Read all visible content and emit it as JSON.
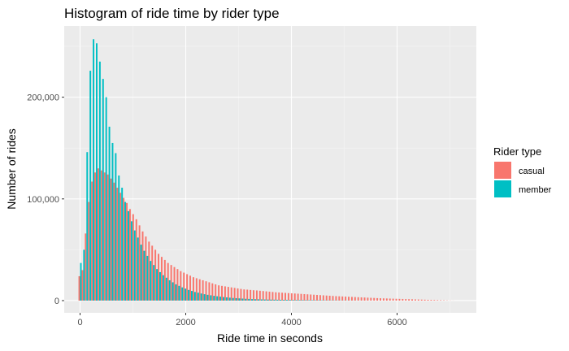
{
  "chart_data": {
    "type": "bar",
    "title": "Histogram of ride time by rider type",
    "xlabel": "Ride time in seconds",
    "ylabel": "Number of rides",
    "xlim": [
      -300,
      7500
    ],
    "ylim": [
      -12000,
      270000
    ],
    "x_ticks": [
      0,
      2000,
      4000,
      6000
    ],
    "x_tick_labels": [
      "0",
      "2000",
      "4000",
      "6000"
    ],
    "y_ticks": [
      0,
      100000,
      200000
    ],
    "y_tick_labels": [
      "0",
      "100,000",
      "200,000"
    ],
    "grid": true,
    "legend": {
      "title": "Rider type",
      "position": "right"
    },
    "bin_width": 60,
    "x": [
      0,
      60,
      120,
      180,
      240,
      300,
      360,
      420,
      480,
      540,
      600,
      660,
      720,
      780,
      840,
      900,
      960,
      1020,
      1080,
      1140,
      1200,
      1260,
      1320,
      1380,
      1440,
      1500,
      1560,
      1620,
      1680,
      1740,
      1800,
      1860,
      1920,
      1980,
      2040,
      2100,
      2160,
      2220,
      2280,
      2340,
      2400,
      2460,
      2520,
      2580,
      2640,
      2700,
      2760,
      2820,
      2880,
      2940,
      3000,
      3060,
      3120,
      3180,
      3240,
      3300,
      3360,
      3420,
      3480,
      3540,
      3600,
      3660,
      3720,
      3780,
      3840,
      3900,
      3960,
      4020,
      4080,
      4140,
      4200,
      4260,
      4320,
      4380,
      4440,
      4500,
      4560,
      4620,
      4680,
      4740,
      4800,
      4860,
      4920,
      4980,
      5040,
      5100,
      5160,
      5220,
      5280,
      5340,
      5400,
      5460,
      5520,
      5580,
      5640,
      5700,
      5760,
      5820,
      5880,
      5940,
      6000,
      6060,
      6120,
      6180,
      6240,
      6300,
      6360,
      6420,
      6480,
      6540,
      6600,
      6660,
      6720,
      6780,
      6840,
      6900,
      6960,
      7020,
      7080
    ],
    "series": [
      {
        "name": "casual",
        "color": "#F8766D",
        "values": [
          24000,
          30000,
          66000,
          97000,
          117000,
          126000,
          130000,
          128000,
          126000,
          124000,
          120000,
          116000,
          111000,
          106000,
          101000,
          96000,
          90000,
          85000,
          80000,
          74000,
          68000,
          63000,
          58000,
          54000,
          50000,
          46000,
          43000,
          40000,
          37000,
          35000,
          33000,
          31000,
          29000,
          27500,
          26000,
          24500,
          23000,
          22000,
          21000,
          20000,
          19000,
          18000,
          17000,
          16000,
          15000,
          14500,
          14000,
          13500,
          13000,
          12500,
          12000,
          11500,
          11000,
          10800,
          10500,
          10200,
          10000,
          9700,
          9400,
          9100,
          8800,
          8500,
          8200,
          8000,
          7800,
          7600,
          7400,
          7200,
          7000,
          6800,
          6600,
          6400,
          6200,
          6000,
          5800,
          5600,
          5400,
          5200,
          5000,
          4800,
          4600,
          4400,
          4250,
          4100,
          3950,
          3800,
          3650,
          3500,
          3350,
          3200,
          3050,
          2900,
          2750,
          2600,
          2450,
          2300,
          2200,
          2100,
          2000,
          1900,
          1800,
          1700,
          1600,
          1500,
          1400,
          1300,
          1200,
          1100,
          1000,
          900,
          800,
          700,
          600,
          500,
          400,
          300,
          200,
          100,
          50
        ]
      },
      {
        "name": "member",
        "color": "#00BFC4",
        "values": [
          37000,
          50000,
          146000,
          226000,
          257000,
          253000,
          235000,
          218000,
          200000,
          171000,
          155000,
          145000,
          123000,
          111000,
          97000,
          88000,
          78000,
          69000,
          62000,
          55000,
          49000,
          44000,
          39000,
          35000,
          31000,
          28000,
          25000,
          22500,
          20000,
          18000,
          16000,
          14500,
          13000,
          11800,
          10500,
          9500,
          8500,
          7800,
          7000,
          6300,
          5700,
          5200,
          4700,
          4300,
          3900,
          3500,
          3200,
          2900,
          2600,
          2400,
          2200,
          2000,
          1800,
          1650,
          1500,
          1400,
          1300,
          1200,
          1100,
          1000,
          950,
          900,
          850,
          800,
          750,
          700,
          650,
          600,
          560,
          520,
          480,
          450,
          420,
          390,
          360,
          330,
          300,
          280,
          260,
          240,
          220,
          200,
          180,
          160,
          140,
          120,
          100,
          80,
          60,
          50,
          40,
          30,
          20,
          10,
          0,
          0,
          0,
          0,
          0,
          0,
          0,
          0,
          0,
          0,
          0,
          0,
          0,
          0,
          0,
          0,
          0,
          0,
          0,
          0,
          0,
          0,
          0,
          0,
          0
        ]
      }
    ]
  }
}
